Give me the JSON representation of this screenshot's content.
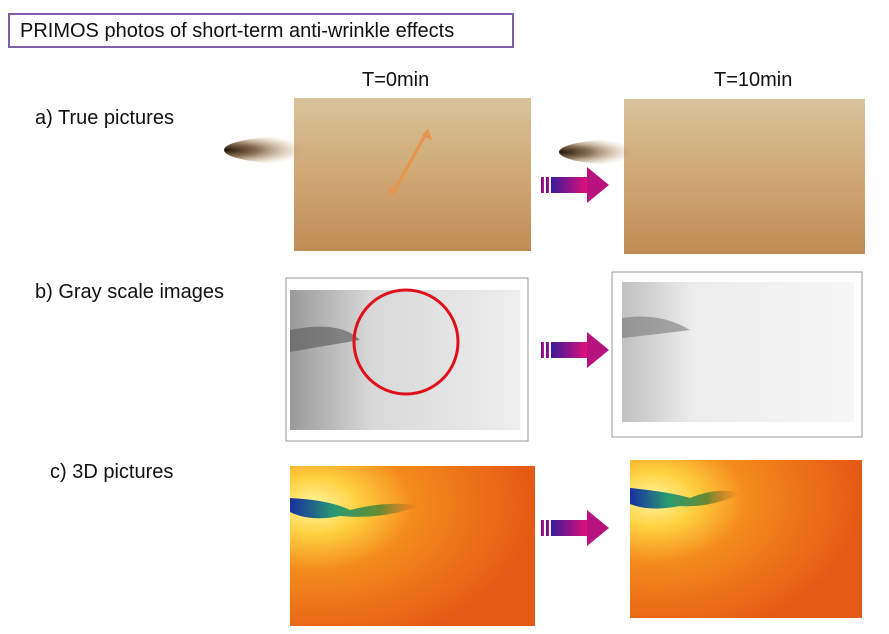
{
  "header": {
    "title": "PRIMOS photos of short-term anti-wrinkle effects"
  },
  "columns": [
    "T=0min",
    "T=10min"
  ],
  "rows": [
    {
      "label": "a)  True pictures"
    },
    {
      "label": "b)  Gray scale images"
    },
    {
      "label": "c) 3D pictures"
    }
  ]
}
